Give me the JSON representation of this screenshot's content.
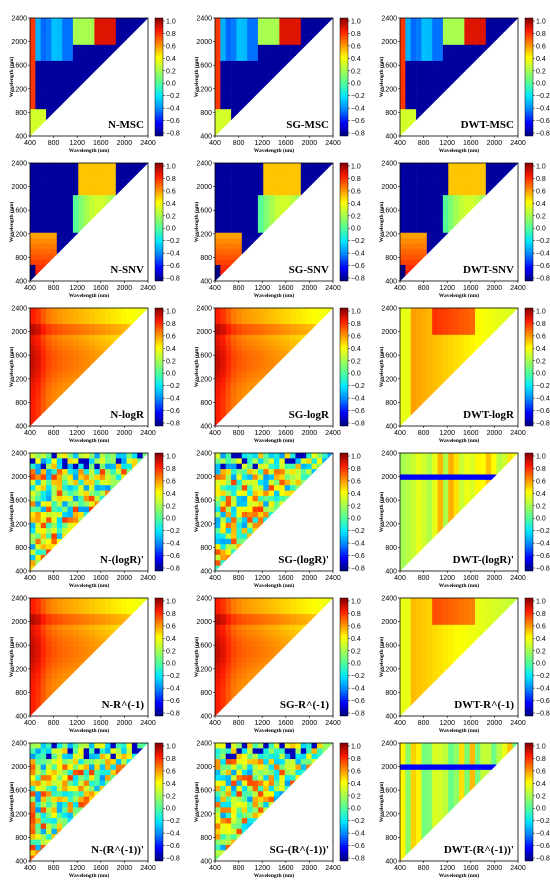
{
  "colormap": [
    "#00007f",
    "#0000ff",
    "#0080ff",
    "#00e5ff",
    "#4dff9f",
    "#a8ff4f",
    "#ffff00",
    "#ff8a00",
    "#ff1a00",
    "#7f0000"
  ],
  "chart_data": {
    "type": "heatmap",
    "rows": 6,
    "cols": 3,
    "xlabel": "Wavelength (nm)",
    "ylabel": "Wavelength (nm)",
    "xlim": [
      400,
      2400
    ],
    "ylim": [
      400,
      2400
    ],
    "xticks": [
      "400",
      "800",
      "1200",
      "1600",
      "2000",
      "2400"
    ],
    "yticks": [
      "400",
      "800",
      "1200",
      "1600",
      "2000",
      "2400"
    ],
    "colorbar": {
      "range": [
        -0.8,
        1.0
      ],
      "ticks": [
        "1.0",
        "0.8",
        "0.6",
        "0.4",
        "0.2",
        "0.0",
        "−0.2",
        "−0.4",
        "−0.6",
        "−0.8"
      ]
    },
    "panels": [
      {
        "title": "N-MSC",
        "base": -0.75,
        "prop": "msc"
      },
      {
        "title": "SG-MSC",
        "base": -0.75,
        "prop": "msc"
      },
      {
        "title": "DWT-MSC",
        "base": -0.75,
        "prop": "msc"
      },
      {
        "title": "N-SNV",
        "base": -0.75,
        "prop": "snv"
      },
      {
        "title": "SG-SNV",
        "base": -0.75,
        "prop": "snv"
      },
      {
        "title": "DWT-SNV",
        "base": -0.75,
        "prop": "snv"
      },
      {
        "title": "N-logR",
        "base": 0.65,
        "prop": "log"
      },
      {
        "title": "SG-logR",
        "base": 0.65,
        "prop": "log"
      },
      {
        "title": "DWT-logR",
        "base": 0.6,
        "prop": "logdwt"
      },
      {
        "title": "N-(logR)'",
        "base": 0.2,
        "prop": "deriv"
      },
      {
        "title": "SG-(logR)'",
        "base": 0.2,
        "prop": "deriv"
      },
      {
        "title": "DWT-(logR)'",
        "base": 0.3,
        "prop": "derivdwt"
      },
      {
        "title": "N-R^(-1)",
        "base": 0.65,
        "prop": "log"
      },
      {
        "title": "SG-R^(-1)",
        "base": 0.65,
        "prop": "log"
      },
      {
        "title": "DWT-R^(-1)",
        "base": 0.55,
        "prop": "logdwt"
      },
      {
        "title": "N-(R^(-1))'",
        "base": 0.2,
        "prop": "deriv"
      },
      {
        "title": "SG-(R^(-1))'",
        "base": 0.2,
        "prop": "deriv"
      },
      {
        "title": "DWT-(R^(-1))'",
        "base": 0.3,
        "prop": "derivdwt"
      }
    ]
  }
}
